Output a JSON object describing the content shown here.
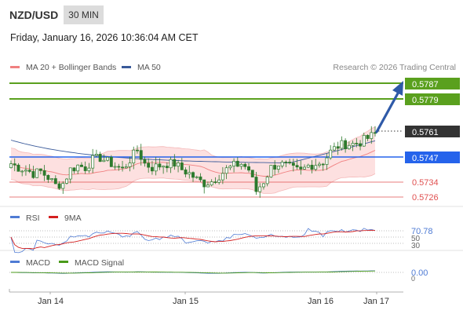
{
  "header": {
    "symbol": "NZD/USD",
    "interval": "30 MIN",
    "datetime": "Friday, January 16, 2026 10:36:04 AM CET"
  },
  "legend": {
    "ma20_bb": "MA 20 + Bollinger Bands",
    "ma50": "MA 50",
    "credit": "Research © 2026 Trading Central"
  },
  "colors": {
    "ma20": "#f08080",
    "ma50": "#3a5a9a",
    "bb_fill": "#fde0e0",
    "candle": "#2d7a2d",
    "resistance": "#5aa01e",
    "support": "#2563eb",
    "pivot_red": "#e05050",
    "last_price": "#333333",
    "rsi": "#4f7bd4",
    "rsi_ma": "#d42020",
    "macd": "#4f7bd4",
    "macd_signal": "#4a9a1a"
  },
  "levels": [
    {
      "value": "0.5787",
      "kind": "resistance"
    },
    {
      "value": "0.5779",
      "kind": "resistance"
    },
    {
      "value": "0.5761",
      "kind": "last"
    },
    {
      "value": "0.5747",
      "kind": "support"
    },
    {
      "value": "0.5734",
      "kind": "pivot"
    },
    {
      "value": "0.5726",
      "kind": "pivot"
    }
  ],
  "rsi_panel": {
    "label": "RSI",
    "ma_label": "9MA",
    "value": "70.78",
    "ticks": [
      "50",
      "30"
    ]
  },
  "macd_panel": {
    "label": "MACD",
    "signal_label": "MACD Signal",
    "value": "0.00",
    "ticks": [
      "0"
    ]
  },
  "x_labels": [
    "Jan 14",
    "Jan 15",
    "Jan 16",
    "Jan 17"
  ],
  "chart_data": {
    "type": "candlestick",
    "symbol": "NZD/USD",
    "interval": "30 MIN",
    "x_labels": [
      "Jan 14",
      "Jan 15",
      "Jan 16",
      "Jan 17"
    ],
    "y_range": [
      0.5716,
      0.5792
    ],
    "close_path": [
      [
        0,
        0.5746
      ],
      [
        2,
        0.5744
      ],
      [
        4,
        0.5743
      ],
      [
        6,
        0.5741
      ],
      [
        8,
        0.5742
      ],
      [
        10,
        0.5739
      ],
      [
        12,
        0.5735
      ],
      [
        14,
        0.5736
      ],
      [
        16,
        0.5743
      ],
      [
        18,
        0.5745
      ],
      [
        20,
        0.5744
      ],
      [
        22,
        0.5748
      ],
      [
        24,
        0.5749
      ],
      [
        26,
        0.5747
      ],
      [
        28,
        0.5745
      ],
      [
        30,
        0.5743
      ],
      [
        32,
        0.5748
      ],
      [
        34,
        0.5753
      ],
      [
        36,
        0.5746
      ],
      [
        38,
        0.5744
      ],
      [
        40,
        0.5745
      ],
      [
        42,
        0.5746
      ],
      [
        44,
        0.5746
      ],
      [
        46,
        0.5743
      ],
      [
        48,
        0.5741
      ],
      [
        50,
        0.5738
      ],
      [
        52,
        0.5736
      ],
      [
        54,
        0.5737
      ],
      [
        56,
        0.574
      ],
      [
        58,
        0.5743
      ],
      [
        60,
        0.5745
      ],
      [
        62,
        0.5746
      ],
      [
        64,
        0.5743
      ],
      [
        66,
        0.5732
      ],
      [
        68,
        0.5737
      ],
      [
        70,
        0.5744
      ],
      [
        72,
        0.5746
      ],
      [
        74,
        0.5745
      ],
      [
        76,
        0.5743
      ],
      [
        78,
        0.5742
      ],
      [
        80,
        0.5745
      ],
      [
        82,
        0.5746
      ],
      [
        84,
        0.5747
      ],
      [
        86,
        0.5752
      ],
      [
        88,
        0.5755
      ],
      [
        90,
        0.5756
      ],
      [
        92,
        0.5756
      ],
      [
        94,
        0.5757
      ],
      [
        96,
        0.5759
      ],
      [
        98,
        0.5761
      ]
    ],
    "levels": {
      "resistance": [
        0.5787,
        0.5779
      ],
      "last": 0.5761,
      "support": 0.5747,
      "pivot": [
        0.5734,
        0.5726
      ]
    },
    "indicators": {
      "ma20_bollinger": "MA 20 + Bollinger Bands",
      "ma50": "MA 50",
      "rsi": {
        "value": 70.78,
        "levels": [
          70,
          50,
          30
        ]
      },
      "macd": {
        "value": 0.0
      }
    }
  }
}
